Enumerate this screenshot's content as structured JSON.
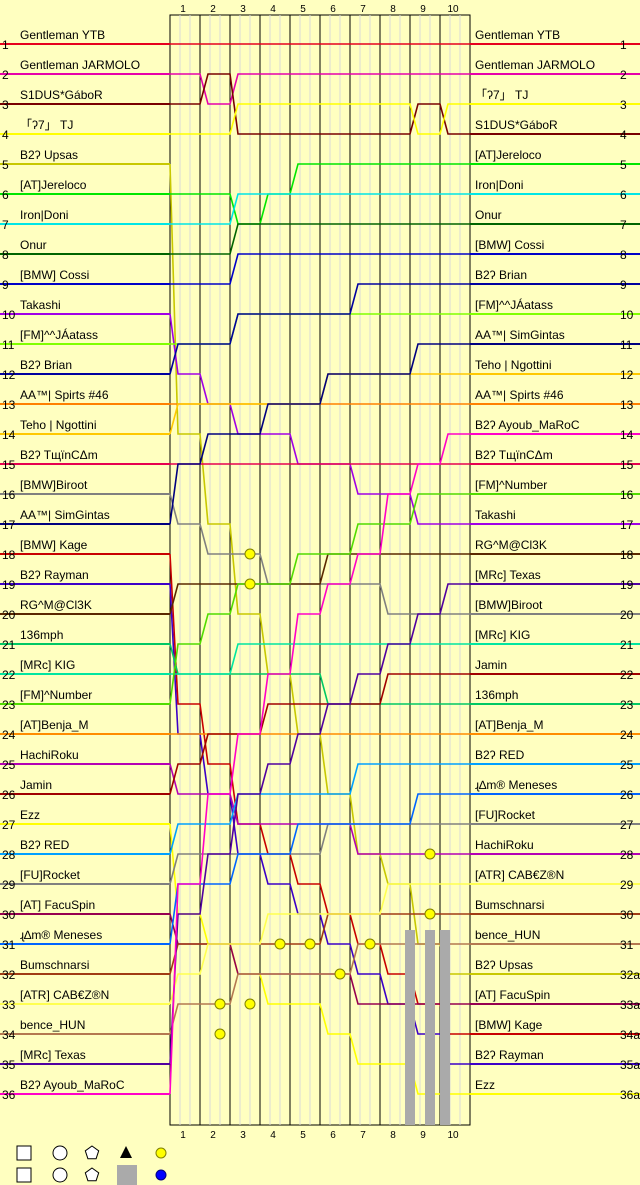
{
  "chart_data": {
    "type": "line",
    "title": "",
    "xlabel": "",
    "ylabel": "",
    "x": [
      1,
      2,
      3,
      4,
      5,
      6,
      7,
      8,
      9,
      10
    ],
    "positions_left": [
      "1",
      "2",
      "3",
      "4",
      "5",
      "6",
      "7",
      "8",
      "9",
      "10",
      "11",
      "12",
      "13",
      "14",
      "15",
      "16",
      "17",
      "18",
      "19",
      "20",
      "21",
      "22",
      "23",
      "24",
      "25",
      "26",
      "27",
      "28",
      "29",
      "30",
      "31",
      "32",
      "33",
      "34",
      "35",
      "36"
    ],
    "positions_right": [
      "1",
      "2",
      "3",
      "4",
      "5",
      "6",
      "7",
      "8",
      "9",
      "10",
      "11",
      "12",
      "13",
      "14",
      "15",
      "16",
      "17",
      "18",
      "19",
      "20",
      "21",
      "22",
      "23",
      "24",
      "25",
      "26",
      "27",
      "28",
      "29",
      "30",
      "31",
      "32a",
      "33a",
      "34a",
      "35a",
      "36a"
    ],
    "start_order": [
      "Gentleman YTB",
      "Gentleman JARMOLO",
      "S1DUS*GáboR",
      "「ʔ7」 TJ",
      "B2ʔ Upsas",
      "[AT]Jereloco",
      "Iron|Doni",
      "Onur",
      "[BMW] Cossi",
      "Takashi",
      "[FM]^^JÁatass",
      "B2ʔ Brian",
      "AA™| Spirts #46",
      "Teho | Ngottini",
      "B2ʔ TщïnCΔm",
      "[BMW]Biroot",
      "AA™| SimGintas",
      "[BMW] Kage",
      "B2ʔ Rayman",
      "RG^M@Cl3K",
      "136mph",
      "[MRc] KIG",
      "[FM]^Number",
      "[AT]Benja_M",
      "HachiRoku",
      "Jamin",
      "Ezz",
      "B2ʔ RED",
      "[FU]Rocket",
      "[AT] FacuSpin",
      "ɻ∆m® Meneses",
      "Bumschnarsi",
      "[ATR] CAB€Z®N",
      "bence_HUN",
      "[MRc] Texas",
      "B2ʔ Ayoub_MaRoC"
    ],
    "finish_order": [
      "Gentleman YTB",
      "Gentleman JARMOLO",
      "「ʔ7」 TJ",
      "S1DUS*GáboR",
      "[AT]Jereloco",
      "Iron|Doni",
      "Onur",
      "[BMW] Cossi",
      "B2ʔ Brian",
      "[FM]^^JÁatass",
      "AA™| SimGintas",
      "Teho | Ngottini",
      "AA™| Spirts #46",
      "B2ʔ Ayoub_MaRoC",
      "B2ʔ TщïnCΔm",
      "[FM]^Number",
      "Takashi",
      "RG^M@Cl3K",
      "[MRc] Texas",
      "[BMW]Biroot",
      "[MRc] KIG",
      "Jamin",
      "136mph",
      "[AT]Benja_M",
      "B2ʔ RED",
      "ɻ∆m® Meneses",
      "[FU]Rocket",
      "HachiRoku",
      "[ATR] CAB€Z®N",
      "Bumschnarsi",
      "bence_HUN",
      "B2ʔ Upsas",
      "[AT] FacuSpin",
      "[BMW] Kage",
      "B2ʔ Rayman",
      "Ezz"
    ],
    "colors": [
      "#e6001e",
      "#e600aa",
      "#780000",
      "#ffff00",
      "#c8c800",
      "#00e600",
      "#00e6e6",
      "#006400",
      "#0000c8",
      "#a000e6",
      "#80ff00",
      "#0000a0",
      "#ff8000",
      "#ffc800",
      "#e60050",
      "#808080",
      "#000080",
      "#c80000",
      "#3c00c8",
      "#5a2800",
      "#00c864",
      "#00e6a0",
      "#50dc00",
      "#ff8c00",
      "#b400b4",
      "#a00000",
      "#ffff00",
      "#00a0ff",
      "#808080",
      "#960050",
      "#0064ff",
      "#a03c14",
      "#ffff50",
      "#b47850",
      "#5000a0",
      "#ff00c8"
    ],
    "lap_positions": {
      "Gentleman YTB": [
        1,
        1,
        1,
        1,
        1,
        1,
        1,
        1,
        1,
        1
      ],
      "Gentleman JARMOLO": [
        2,
        3,
        2,
        2,
        2,
        2,
        2,
        2,
        2,
        2
      ],
      "S1DUS*GáboR": [
        3,
        2,
        4,
        4,
        4,
        4,
        4,
        4,
        3,
        4
      ],
      "「ʔ7」 TJ": [
        4,
        4,
        3,
        3,
        3,
        3,
        3,
        3,
        4,
        3
      ],
      "[AT]Jereloco": [
        6,
        6,
        7,
        6,
        5,
        5,
        5,
        5,
        5,
        5
      ]
    },
    "legend_symbols": [
      "square",
      "circle",
      "pentagon",
      "triangle",
      "gray-bar",
      "yellow-dot",
      "blue-dot"
    ]
  }
}
